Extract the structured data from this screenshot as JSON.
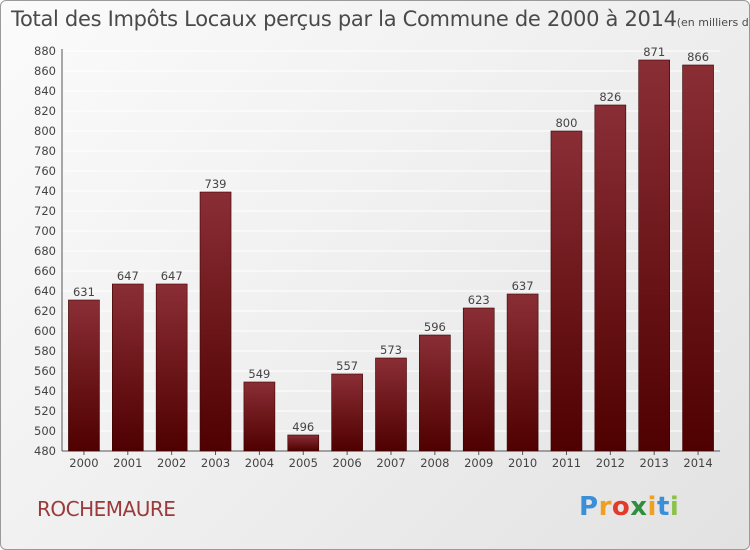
{
  "title": "Total des Impôts Locaux perçus par la Commune de 2000 à 2014",
  "unit_note": "(en milliers d'€)",
  "commune": "ROCHEMAURE",
  "logo_text": "Proxiti",
  "colors": {
    "bar_top": "#8a2e35",
    "bar_bottom": "#4f0000",
    "grid": "#ffffff",
    "commune_text": "#9b3a3a",
    "logo": [
      "#3b8ed8",
      "#f0a020",
      "#e23b2a",
      "#2f8f3e",
      "#f0a020",
      "#3b8ed8",
      "#8bc34a"
    ]
  },
  "chart_data": {
    "type": "bar",
    "title": "Total des Impôts Locaux perçus par la Commune de 2000 à 2014",
    "xlabel": "",
    "ylabel": "",
    "categories": [
      "2000",
      "2001",
      "2002",
      "2003",
      "2004",
      "2005",
      "2006",
      "2007",
      "2008",
      "2009",
      "2010",
      "2011",
      "2012",
      "2013",
      "2014"
    ],
    "values": [
      631,
      647,
      647,
      739,
      549,
      496,
      557,
      573,
      596,
      623,
      637,
      800,
      826,
      871,
      866
    ],
    "value_labels": [
      "631",
      "647",
      "647",
      "739",
      "549",
      "496",
      "557",
      "573",
      "596",
      "623",
      "637",
      "800",
      "826",
      "871",
      "866"
    ],
    "ylim": [
      480,
      880
    ],
    "yticks": [
      480,
      500,
      520,
      540,
      560,
      580,
      600,
      620,
      640,
      660,
      680,
      700,
      720,
      740,
      760,
      780,
      800,
      820,
      840,
      860,
      880
    ],
    "ytick_labels": [
      "480",
      "500",
      "520",
      "540",
      "560",
      "580",
      "600",
      "620",
      "640",
      "660",
      "680",
      "700",
      "720",
      "740",
      "760",
      "780",
      "800",
      "820",
      "840",
      "860",
      "880"
    ],
    "grid": true
  }
}
